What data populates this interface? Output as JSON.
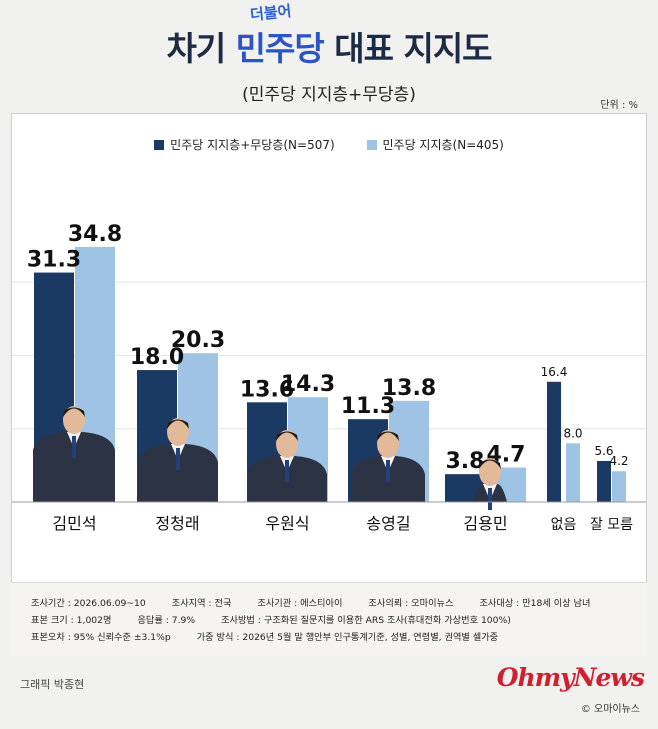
{
  "header": {
    "title_pre": "차기 ",
    "title_party": "민주당",
    "title_post": " 대표 지지도",
    "party_script": "더불어",
    "subtitle": "(민주당 지지층+무당층)",
    "unit": "단위 : %"
  },
  "colors": {
    "series1": "#1b3a63",
    "series2": "#9fc3e5",
    "background": "#f1f1ef"
  },
  "chart_data": {
    "type": "bar",
    "categories": [
      "김민석",
      "정청래",
      "우원식",
      "송영길",
      "김용민",
      "없음",
      "잘 모름"
    ],
    "series": [
      {
        "name": "민주당 지지층+무당층(N=507)",
        "values": [
          31.3,
          18.0,
          13.6,
          11.3,
          3.8,
          16.4,
          5.6
        ]
      },
      {
        "name": "민주당 지지층(N=405)",
        "values": [
          34.8,
          20.3,
          14.3,
          13.8,
          4.7,
          8.0,
          4.2
        ]
      }
    ],
    "labels": [
      [
        "31.3",
        "18.0",
        "13.6",
        "11.3",
        "3.8",
        "16.4",
        "5.6"
      ],
      [
        "34.8",
        "20.3",
        "14.3",
        "13.8",
        "4.7",
        "8.0",
        "4.2"
      ]
    ],
    "ylim": [
      0,
      40
    ],
    "grid": true,
    "legend": "top-center",
    "xlabel": "",
    "ylabel": ""
  },
  "footer": {
    "rows": [
      [
        {
          "k": "조사기간",
          "v": "2026.06.09~10"
        },
        {
          "k": "조사지역",
          "v": "전국"
        },
        {
          "k": "조사기관",
          "v": "에스티아이"
        },
        {
          "k": "조사의뢰",
          "v": "오마이뉴스"
        },
        {
          "k": "조사대상",
          "v": "만18세 이상 남녀"
        }
      ],
      [
        {
          "k": "표본 크기",
          "v": "1,002명"
        },
        {
          "k": "응답률",
          "v": "7.9%"
        },
        {
          "k": "조사방법",
          "v": "구조화된 질문지를 이용한 ARS 조사(휴대전화 가상번호 100%)"
        }
      ],
      [
        {
          "k": "표본오차",
          "v": "95% 신뢰수준 ±3.1%p"
        },
        {
          "k": "가중 방식",
          "v": "2026년 5월 말 행안부 인구통계기준, 성별, 연령별, 권역별 셀가중"
        }
      ]
    ]
  },
  "credit": "그래픽 박종현",
  "brand": {
    "logo": "OhmyNews",
    "sub": "© 오마이뉴스"
  }
}
